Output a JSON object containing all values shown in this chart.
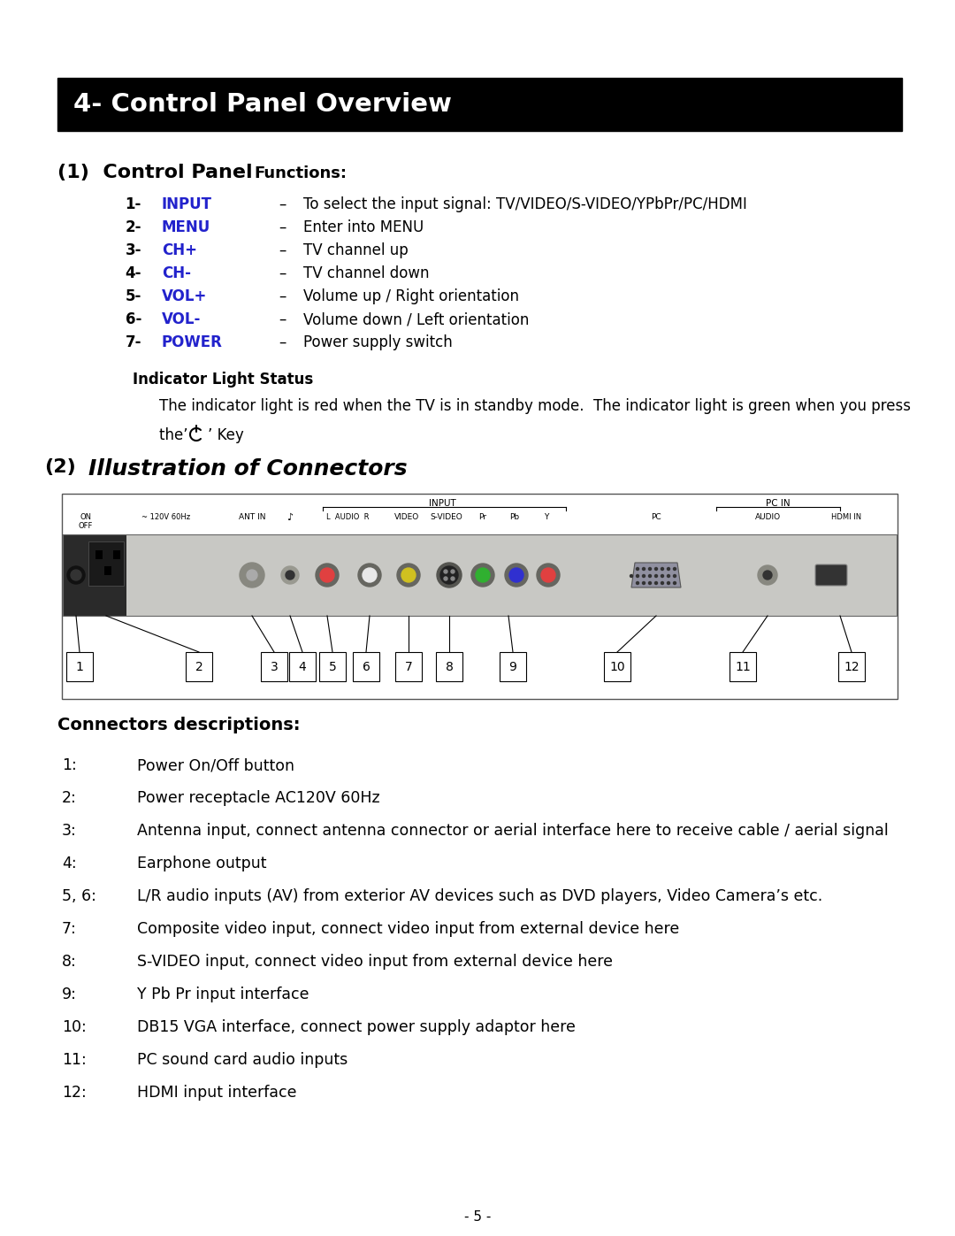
{
  "page_bg": "#ffffff",
  "header_bg": "#000000",
  "header_text": "4- Control Panel Overview",
  "header_text_color": "#ffffff",
  "control_items": [
    {
      "num": "1-",
      "label": "INPUT",
      "color": "#2222cc",
      "dash": "–",
      "desc": "To select the input signal: TV/VIDEO/S-VIDEO/YPbPr/PC/HDMI"
    },
    {
      "num": "2-",
      "label": "MENU",
      "color": "#2222cc",
      "dash": "–",
      "desc": "Enter into MENU"
    },
    {
      "num": "3-",
      "label": "CH+",
      "color": "#2222cc",
      "dash": "–",
      "desc": "TV channel up"
    },
    {
      "num": "4-",
      "label": "CH-",
      "color": "#2222cc",
      "dash": "–",
      "desc": "TV channel down"
    },
    {
      "num": "5-",
      "label": "VOL+",
      "color": "#2222cc",
      "dash": "–",
      "desc": "Volume up / Right orientation"
    },
    {
      "num": "6-",
      "label": "VOL-",
      "color": "#2222cc",
      "dash": "–",
      "desc": "Volume down / Left orientation"
    },
    {
      "num": "7-",
      "label": "POWER",
      "color": "#2222cc",
      "dash": "–",
      "desc": "Power supply switch"
    }
  ],
  "indicator_bold": "Indicator Light Status",
  "indicator_text": "The indicator light is red when the TV is in standby mode.  The indicator light is green when you press",
  "indicator_text2": "the’",
  "indicator_key": " Key",
  "section2_title": "Illustration of Connectors",
  "connectors_title": "Connectors descriptions:",
  "connector_items": [
    {
      "num": "1:",
      "text": "Power On/Off button"
    },
    {
      "num": "2:",
      "text": "Power receptacle AC120V 60Hz"
    },
    {
      "num": "3:",
      "text": "Antenna input, connect antenna connector or aerial interface here to receive cable / aerial signal"
    },
    {
      "num": "4:",
      "text": "Earphone output"
    },
    {
      "num": "5, 6:",
      "text": "L/R audio inputs (AV) from exterior AV devices such as DVD players, Video Camera’s etc."
    },
    {
      "num": "7:",
      "text": "Composite video input, connect video input from external device here"
    },
    {
      "num": "8:",
      "text": "S-VIDEO input, connect video input from external device here"
    },
    {
      "num": "9:",
      "text": "Y Pb Pr input interface"
    },
    {
      "num": "10:",
      "text": "DB15 VGA interface, connect power supply adaptor here"
    },
    {
      "num": "11:",
      "text": "PC sound card audio inputs"
    },
    {
      "num": "12:",
      "text": "HDMI input interface"
    }
  ],
  "page_number": "- 5 -"
}
